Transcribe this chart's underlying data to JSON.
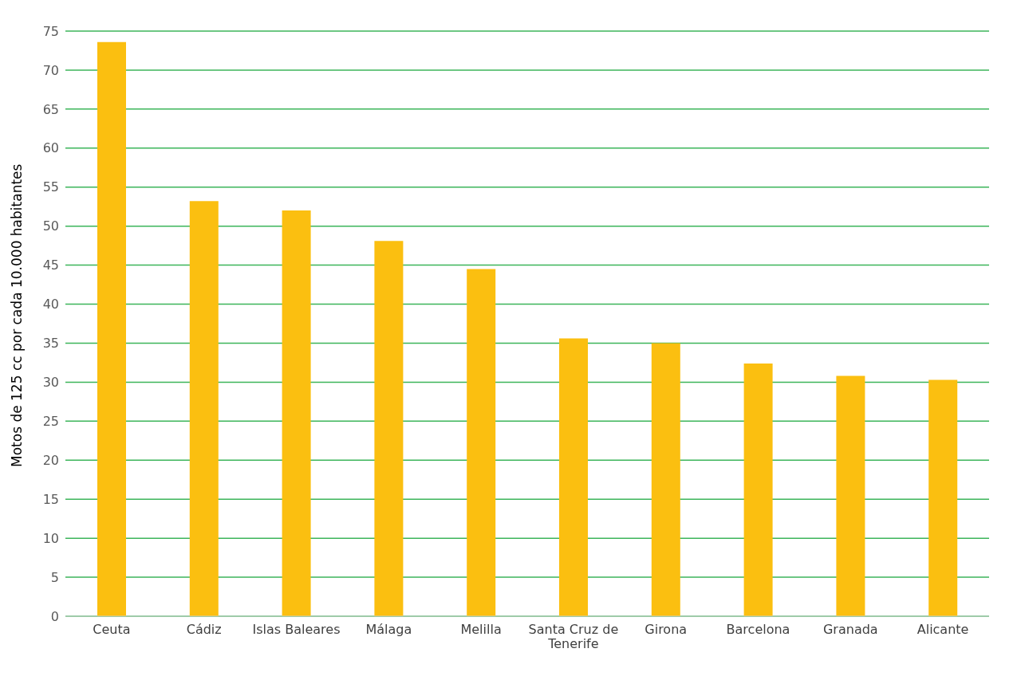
{
  "chart_data": {
    "type": "bar",
    "ylabel": "Motos de 125 cc por cada 10.000 habitantes",
    "categories": [
      "Ceuta",
      "Cádiz",
      "Islas Baleares",
      "Málaga",
      "Melilla",
      "Santa Cruz de Tenerife",
      "Girona",
      "Barcelona",
      "Granada",
      "Alicante"
    ],
    "values": [
      73.6,
      53.2,
      52.0,
      48.1,
      44.5,
      35.6,
      35.0,
      32.4,
      30.8,
      30.3
    ],
    "color": "#fbbf10",
    "ylim": [
      0,
      75
    ],
    "yticks": [
      0,
      5,
      10,
      15,
      20,
      25,
      30,
      35,
      40,
      45,
      50,
      55,
      60,
      65,
      70,
      75
    ],
    "grid": "y",
    "legend": false
  }
}
